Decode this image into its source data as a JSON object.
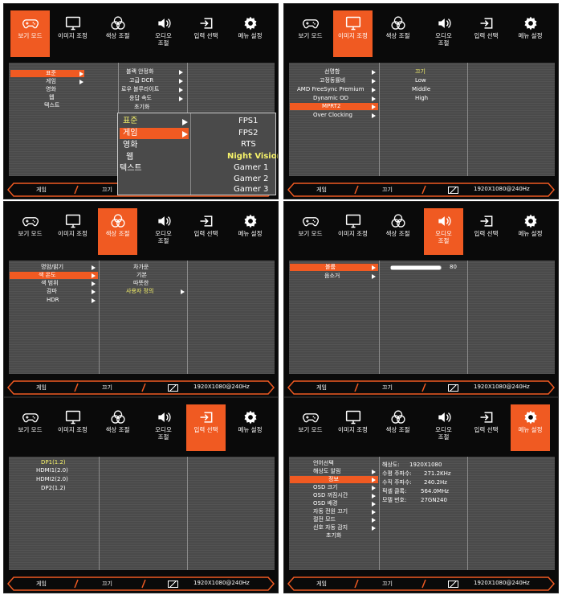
{
  "tabs": [
    "보기 모드",
    "이미지 조정",
    "색상 조절",
    "오디오\n조절",
    "입력 선택",
    "메뉴 설정"
  ],
  "status": {
    "mode": "게임",
    "state": "끄기",
    "resolution": "1920X1080@240Hz"
  },
  "panel1": {
    "main": [
      "표준",
      "게임",
      "영화",
      "웹",
      "텍스트"
    ],
    "sub": [
      "블랙 안정화",
      "고급 DCR",
      "로우 블루라이트",
      "응답 속도",
      "초기화"
    ],
    "popup_left": [
      "표준",
      "게임",
      "영화",
      "웹",
      "텍스트"
    ],
    "popup_right": [
      "FPS1",
      "FPS2",
      "RTS",
      "Night Vision",
      "Gamer 1",
      "Gamer 2",
      "Gamer 3"
    ]
  },
  "panel2": {
    "main": [
      "선명함",
      "고정동률비",
      "AMD FreeSync Premium",
      "Dynamic OD",
      "MPRT2",
      "Over Clocking"
    ],
    "sub": [
      "끄기",
      "Low",
      "Middle",
      "High"
    ]
  },
  "panel3": {
    "main": [
      "명암/밝기",
      "색 온도",
      "색 범위",
      "감마",
      "HDR"
    ],
    "sub": [
      "차가운",
      "기본",
      "따뜻한",
      "사용자 정의"
    ]
  },
  "panel4": {
    "main": [
      "볼륨",
      "음소거"
    ],
    "volume_value": "80",
    "volume_level": 0.8
  },
  "panel5": {
    "main": [
      "DP1(1.2)",
      "HDMI1(2.0)",
      "HDMI2(2.0)",
      "DP2(1.2)"
    ]
  },
  "panel6": {
    "main": [
      "언어선택",
      "해상도 알림",
      "정보",
      "OSD 크기",
      "OSD 꺼짐시간",
      "OSD 배경",
      "자동 전원 끄기",
      "절전 모드",
      "신호 자동 감지",
      "초기화"
    ],
    "info_labels": [
      "해상도:",
      "수평 주파수:",
      "수직 주파수:",
      "픽셀 클록:",
      "모델 번호:"
    ],
    "info_values": [
      "1920X1080",
      "271.2KHz",
      "240.2Hz",
      "564.0MHz",
      "27GN240"
    ]
  },
  "colors": {
    "accent": "#f05a22",
    "highlight": "#f6f26a",
    "menu_bg": "#4a4a4a"
  }
}
